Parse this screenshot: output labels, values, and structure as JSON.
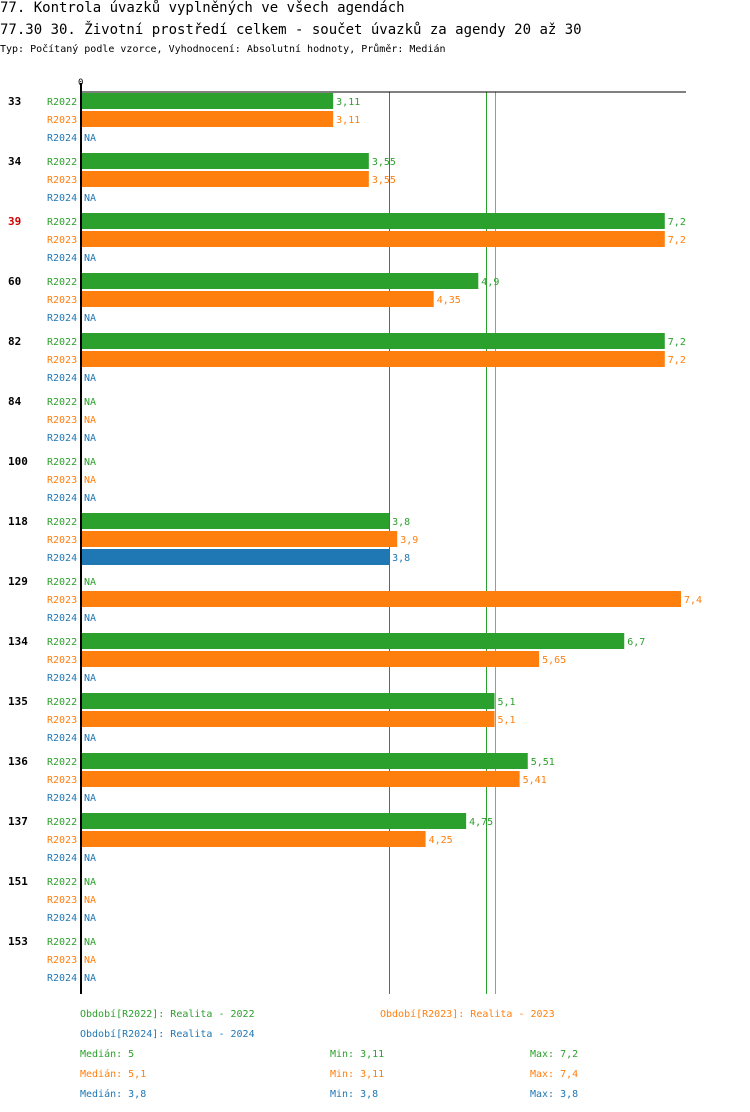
{
  "header": {
    "title": "77. Kontrola úvazků vyplněných ve všech agendách",
    "subtitle": "77.30 30. Životní prostředí celkem - součet úvazků za agendy 20 až 30",
    "type_line": "Typ: Počítaný podle vzorce, Vyhodnocení: Absolutní hodnoty, Průměr: Medián"
  },
  "colors": {
    "R2022": "#2ca02c",
    "R2023": "#ff7f0e",
    "R2024": "#1f77b4",
    "highlight": "#cc0000",
    "axis": "#000000"
  },
  "chart_data": {
    "type": "bar",
    "orientation": "horizontal",
    "axis_zero_label": "0",
    "xlim": [
      0,
      7.4
    ],
    "na_label": "NA",
    "categories": [
      "33",
      "34",
      "39",
      "60",
      "82",
      "84",
      "100",
      "118",
      "129",
      "134",
      "135",
      "136",
      "137",
      "151",
      "153"
    ],
    "highlight_category": "39",
    "series": [
      {
        "name": "R2022",
        "values": [
          3.11,
          3.55,
          7.2,
          4.9,
          7.2,
          null,
          null,
          3.8,
          null,
          6.7,
          5.1,
          5.51,
          4.75,
          null,
          null
        ],
        "labels": [
          "3,11",
          "3,55",
          "7,2",
          "4,9",
          "7,2",
          "NA",
          "NA",
          "3,8",
          "NA",
          "6,7",
          "5,1",
          "5,51",
          "4,75",
          "NA",
          "NA"
        ]
      },
      {
        "name": "R2023",
        "values": [
          3.11,
          3.55,
          7.2,
          4.35,
          7.2,
          null,
          null,
          3.9,
          7.4,
          5.65,
          5.1,
          5.41,
          4.25,
          null,
          null
        ],
        "labels": [
          "3,11",
          "3,55",
          "7,2",
          "4,35",
          "7,2",
          "NA",
          "NA",
          "3,9",
          "7,4",
          "5,65",
          "5,1",
          "5,41",
          "4,25",
          "NA",
          "NA"
        ]
      },
      {
        "name": "R2024",
        "values": [
          null,
          null,
          null,
          null,
          null,
          null,
          null,
          3.8,
          null,
          null,
          null,
          null,
          null,
          null,
          null
        ],
        "labels": [
          "NA",
          "NA",
          "NA",
          "NA",
          "NA",
          "NA",
          "NA",
          "3,8",
          "NA",
          "NA",
          "NA",
          "NA",
          "NA",
          "NA",
          "NA"
        ]
      }
    ],
    "reference_lines": [
      {
        "series": "R2024",
        "value": 3.8
      },
      {
        "series": "R2022",
        "value": 5.0
      },
      {
        "series": "R2023",
        "value": 5.1
      }
    ]
  },
  "legend": {
    "period_r2022": "Období[R2022]: Realita - 2022",
    "period_r2023": "Období[R2023]: Realita - 2023",
    "period_r2024": "Období[R2024]: Realita - 2024",
    "stats": [
      {
        "series": "R2022",
        "median": "Medián: 5",
        "min": "Min: 3,11",
        "max": "Max: 7,2"
      },
      {
        "series": "R2023",
        "median": "Medián: 5,1",
        "min": "Min: 3,11",
        "max": "Max: 7,4"
      },
      {
        "series": "R2024",
        "median": "Medián: 3,8",
        "min": "Min: 3,8",
        "max": "Max: 3,8"
      }
    ]
  }
}
